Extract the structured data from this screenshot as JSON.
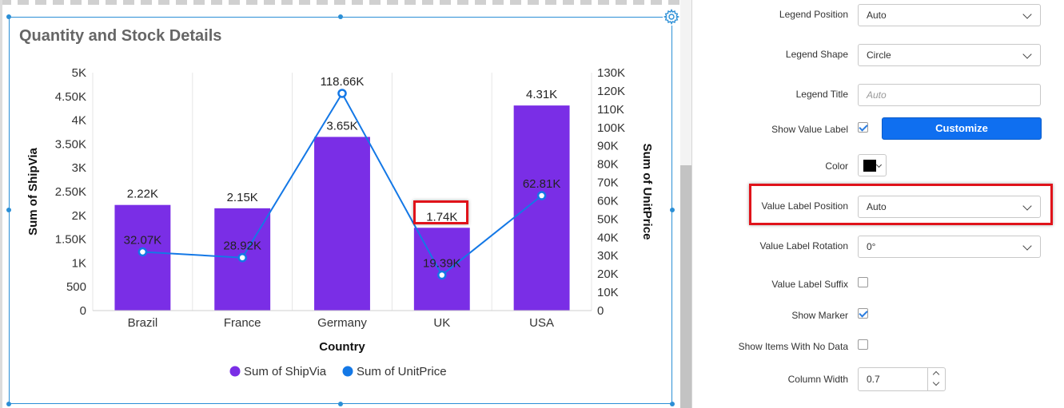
{
  "widget": {
    "title": "Quantity and Stock Details",
    "gear_icon": "gear-icon"
  },
  "chart_data": {
    "type": "bar",
    "categories": [
      "Brazil",
      "France",
      "Germany",
      "UK",
      "USA"
    ],
    "series": [
      {
        "name": "Sum of ShipVia",
        "type": "bar",
        "axis": "left",
        "color": "#7a2ee6",
        "values": [
          2220,
          2150,
          3650,
          1740,
          4310
        ],
        "labels": [
          "2.22K",
          "2.15K",
          "3.65K",
          "1.74K",
          "4.31K"
        ]
      },
      {
        "name": "Sum of UnitPrice",
        "type": "line",
        "axis": "right",
        "color": "#1478e6",
        "values": [
          32070,
          28920,
          118660,
          19390,
          62810
        ],
        "labels": [
          "32.07K",
          "28.92K",
          "118.66K",
          "19.39K",
          "62.81K"
        ]
      }
    ],
    "xlabel": "Country",
    "ylabel": "Sum of ShipVia",
    "y2label": "Sum of UnitPrice",
    "ylim": [
      0,
      5000
    ],
    "y2lim": [
      0,
      130000
    ],
    "y_ticks": [
      "0",
      "500",
      "1K",
      "1.50K",
      "2K",
      "2.50K",
      "3K",
      "3.50K",
      "4K",
      "4.50K",
      "5K"
    ],
    "y2_ticks": [
      "0",
      "10K",
      "20K",
      "30K",
      "40K",
      "50K",
      "60K",
      "70K",
      "80K",
      "90K",
      "100K",
      "110K",
      "120K",
      "130K"
    ],
    "grid": true,
    "legend": "bottom"
  },
  "properties": {
    "legend_position": {
      "label": "Legend Position",
      "value": "Auto"
    },
    "legend_shape": {
      "label": "Legend Shape",
      "value": "Circle"
    },
    "legend_title": {
      "label": "Legend Title",
      "placeholder": "Auto"
    },
    "show_value_label": {
      "label": "Show Value Label",
      "checked": true,
      "button": "Customize"
    },
    "color": {
      "label": "Color",
      "value": "#000000"
    },
    "value_label_position": {
      "label": "Value Label Position",
      "value": "Auto"
    },
    "value_label_rotation": {
      "label": "Value Label Rotation",
      "value": "0°"
    },
    "value_label_suffix": {
      "label": "Value Label Suffix",
      "checked": false
    },
    "show_marker": {
      "label": "Show Marker",
      "checked": true
    },
    "show_items_no_data": {
      "label": "Show Items With No Data",
      "checked": false
    },
    "column_width": {
      "label": "Column Width",
      "value": "0.7"
    }
  },
  "highlight_color": "#e0131a"
}
